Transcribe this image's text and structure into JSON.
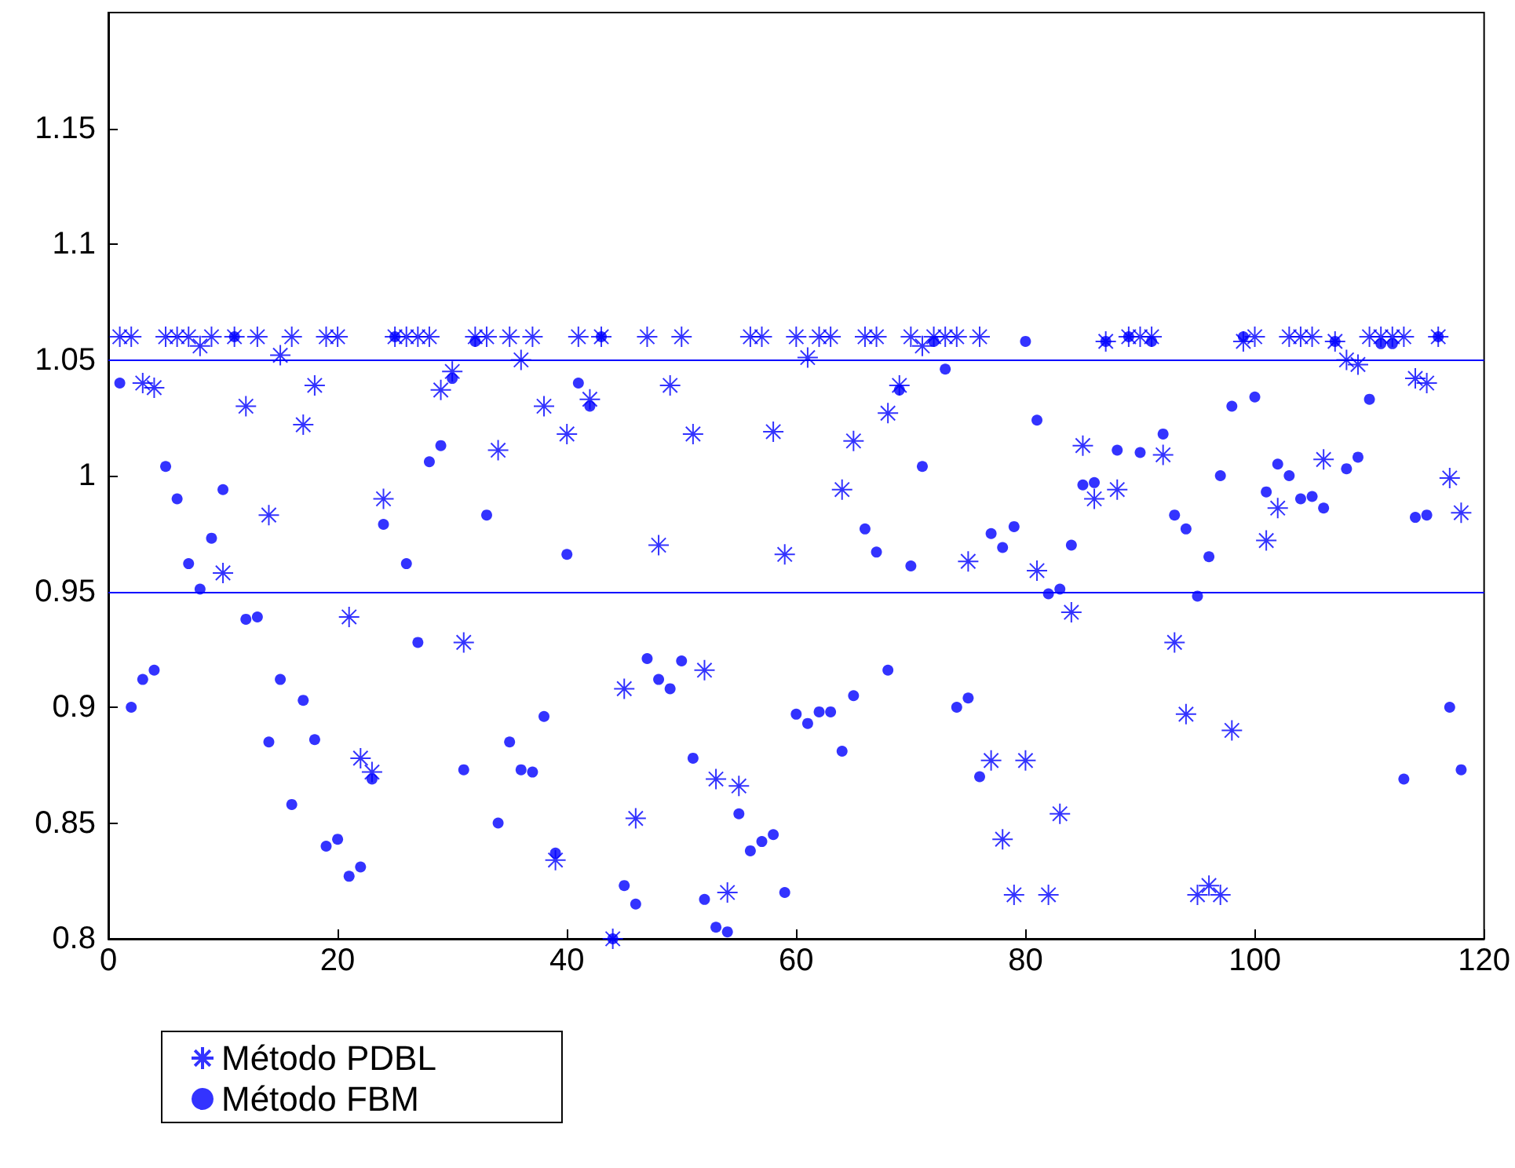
{
  "chart_data": {
    "type": "scatter",
    "x": [
      1,
      2,
      3,
      4,
      5,
      6,
      7,
      8,
      9,
      10,
      11,
      12,
      13,
      14,
      15,
      16,
      17,
      18,
      19,
      20,
      21,
      22,
      23,
      24,
      25,
      26,
      27,
      28,
      29,
      30,
      31,
      32,
      33,
      34,
      35,
      36,
      37,
      38,
      39,
      40,
      41,
      42,
      43,
      44,
      45,
      46,
      47,
      48,
      49,
      50,
      51,
      52,
      53,
      54,
      55,
      56,
      57,
      58,
      59,
      60,
      61,
      62,
      63,
      64,
      65,
      66,
      67,
      68,
      69,
      70,
      71,
      72,
      73,
      74,
      75,
      76,
      77,
      78,
      79,
      80,
      81,
      82,
      83,
      84,
      85,
      86,
      87,
      88,
      89,
      90,
      91,
      92,
      93,
      94,
      95,
      96,
      97,
      98,
      99,
      100,
      101,
      102,
      103,
      104,
      105,
      106,
      107,
      108,
      109,
      110,
      111,
      112,
      113,
      114,
      115,
      116,
      117,
      118
    ],
    "series": [
      {
        "name": "Método PDBL",
        "color": "#0000ff",
        "marker": "cross",
        "values": [
          1.06,
          1.06,
          1.04,
          1.038,
          1.06,
          1.06,
          1.06,
          1.056,
          1.06,
          0.958,
          1.06,
          1.03,
          1.06,
          0.983,
          1.052,
          1.06,
          1.022,
          1.039,
          1.06,
          1.06,
          0.939,
          0.878,
          0.872,
          0.99,
          1.06,
          1.06,
          1.06,
          1.06,
          1.037,
          1.045,
          0.928,
          1.06,
          1.06,
          1.011,
          1.06,
          1.05,
          1.06,
          1.03,
          0.834,
          1.018,
          1.06,
          1.033,
          1.06,
          0.8,
          0.908,
          0.852,
          1.06,
          0.97,
          1.039,
          1.06,
          1.018,
          0.916,
          0.869,
          0.82,
          0.866,
          1.06,
          1.06,
          1.019,
          0.966,
          1.06,
          1.051,
          1.06,
          1.06,
          0.994,
          1.015,
          1.06,
          1.06,
          1.027,
          1.039,
          1.06,
          1.056,
          1.06,
          1.06,
          1.06,
          0.963,
          1.06,
          0.877,
          0.843,
          0.819,
          0.877,
          0.959,
          0.819,
          0.854,
          0.941,
          1.013,
          0.99,
          1.058,
          0.994,
          1.06,
          1.06,
          1.06,
          1.009,
          0.928,
          0.897,
          0.819,
          0.823,
          0.819,
          0.89,
          1.058,
          1.06,
          0.972,
          0.986,
          1.06,
          1.06,
          1.06,
          1.007,
          1.058,
          1.05,
          1.048,
          1.06,
          1.06,
          1.06,
          1.06,
          1.042,
          1.04,
          1.06,
          0.999,
          0.984
        ]
      },
      {
        "name": "Método FBM",
        "color": "#0000ff",
        "marker": "circle",
        "values": [
          1.04,
          0.9,
          0.912,
          0.916,
          1.004,
          0.99,
          0.962,
          0.951,
          0.973,
          0.994,
          1.06,
          0.938,
          0.939,
          0.885,
          0.912,
          0.858,
          0.903,
          0.886,
          0.84,
          0.843,
          0.827,
          0.831,
          0.869,
          0.979,
          1.06,
          0.962,
          0.928,
          1.006,
          1.013,
          1.042,
          0.873,
          1.058,
          0.983,
          0.85,
          0.885,
          0.873,
          0.872,
          0.896,
          0.837,
          0.966,
          1.04,
          1.03,
          1.06,
          0.8,
          0.823,
          0.815,
          0.921,
          0.912,
          0.908,
          0.92,
          0.878,
          0.817,
          0.805,
          0.803,
          0.854,
          0.838,
          0.842,
          0.845,
          0.82,
          0.897,
          0.893,
          0.898,
          0.898,
          0.881,
          0.905,
          0.977,
          0.967,
          0.916,
          1.037,
          0.961,
          1.004,
          1.058,
          1.046,
          0.9,
          0.904,
          0.87,
          0.975,
          0.969,
          0.978,
          1.058,
          1.024,
          0.949,
          0.951,
          0.97,
          0.996,
          0.997,
          1.058,
          1.011,
          1.06,
          1.01,
          1.058,
          1.018,
          0.983,
          0.977,
          0.948,
          0.965,
          1.0,
          1.03,
          1.06,
          1.034,
          0.993,
          1.005,
          1.0,
          0.99,
          0.991,
          0.986,
          1.058,
          1.003,
          1.008,
          1.033,
          1.057,
          1.057,
          0.869,
          0.982,
          0.983,
          1.06,
          0.9,
          0.873
        ]
      }
    ],
    "xlim": [
      0,
      120
    ],
    "xticks": [
      0,
      20,
      40,
      60,
      80,
      100,
      120
    ],
    "ylim": [
      0.8,
      1.2
    ],
    "yticks": [
      0.8,
      0.85,
      0.9,
      0.95,
      1,
      1.05,
      1.1,
      1.15
    ],
    "ref_lines": [
      {
        "axis": "y",
        "value": 1.05,
        "color": "#0000ff"
      },
      {
        "axis": "y",
        "value": 0.95,
        "color": "#0000ff"
      }
    ],
    "grid": false,
    "legend": "bottom left"
  }
}
